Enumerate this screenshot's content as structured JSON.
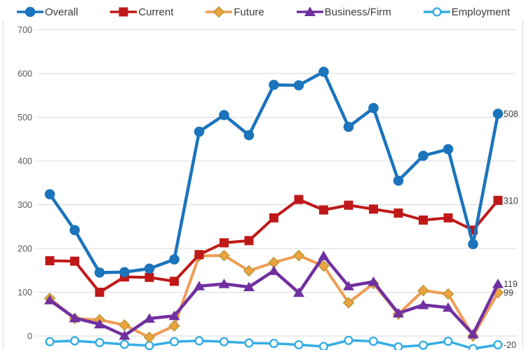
{
  "chart_data": {
    "type": "line",
    "title": "",
    "legend_position": "top",
    "grid": true,
    "gridline_color": "#D9D9D9",
    "axis_label_color": "#595959",
    "data_label_color": "#3F3F3F",
    "y_ticks": [
      700,
      600,
      500,
      400,
      300,
      200,
      100,
      0
    ],
    "ylim_visible": [
      -30,
      700
    ],
    "x_axis_labels_visible": false,
    "x": [
      1,
      2,
      3,
      4,
      5,
      6,
      7,
      8,
      9,
      10,
      11,
      12,
      13,
      14,
      15,
      16,
      17,
      18,
      19
    ],
    "series": [
      {
        "name": "Overall",
        "marker": "circle",
        "color": "#1B74BC",
        "end_label": "508",
        "values": [
          324,
          242,
          145,
          146,
          154,
          175,
          467,
          505,
          459,
          574,
          573,
          604,
          478,
          521,
          355,
          412,
          427,
          210,
          508
        ]
      },
      {
        "name": "Current",
        "marker": "square",
        "color": "#C01818",
        "end_label": "310",
        "values": [
          172,
          171,
          100,
          135,
          134,
          125,
          186,
          213,
          218,
          270,
          312,
          288,
          299,
          290,
          281,
          265,
          270,
          242,
          310
        ]
      },
      {
        "name": "Future",
        "marker": "diamond",
        "color": "#F09C55",
        "marker_fill": "#EDA33F",
        "marker_stroke": "#B59A3B",
        "end_label": "99",
        "values": [
          86,
          40,
          37,
          25,
          -3,
          23,
          183,
          184,
          149,
          168,
          184,
          160,
          76,
          120,
          50,
          104,
          96,
          0,
          99
        ]
      },
      {
        "name": "Business/Firm",
        "marker": "triangle",
        "color": "#7030A0",
        "end_label": "119",
        "values": [
          82,
          41,
          27,
          1,
          40,
          46,
          114,
          119,
          112,
          149,
          99,
          183,
          114,
          124,
          52,
          71,
          65,
          4,
          119
        ]
      },
      {
        "name": "Employment",
        "marker": "open-circle",
        "color": "#35ADE3",
        "end_label": "-20",
        "values": [
          -13,
          -11,
          -15,
          -19,
          -22,
          -13,
          -11,
          -13,
          -16,
          -17,
          -20,
          -24,
          -10,
          -12,
          -25,
          -21,
          -12,
          -29,
          -20
        ]
      }
    ]
  }
}
